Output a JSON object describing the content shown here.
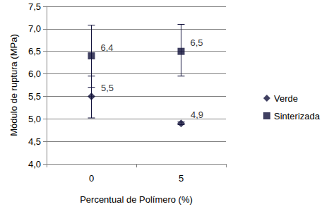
{
  "chart_data": {
    "type": "scatter",
    "x_label": "Percentual de Polímero (%)",
    "y_label": "Módulo de ruptura (MPa)",
    "categories": [
      "0",
      "5"
    ],
    "series": [
      {
        "name": "Verde",
        "color": "#10103a",
        "marker": "diamond",
        "values": [
          5.5,
          4.9
        ],
        "value_labels": [
          "5,5",
          "4,9"
        ],
        "error_bars": [
          [
            5.02,
            5.95
          ],
          [
            4.87,
            4.93
          ]
        ]
      },
      {
        "name": "Sinterizada",
        "color": "#10103a",
        "marker": "square",
        "values": [
          6.4,
          6.5
        ],
        "value_labels": [
          "6,4",
          "6,5"
        ],
        "error_bars": [
          [
            5.7,
            7.08
          ],
          [
            5.95,
            7.1
          ]
        ]
      }
    ],
    "ylim": [
      4,
      7.5
    ],
    "yticks": [
      {
        "value": 4,
        "label": "4,0"
      },
      {
        "value": 4.5,
        "label": "4,5"
      },
      {
        "value": 5,
        "label": "5,0"
      },
      {
        "value": 5.5,
        "label": "5,5"
      },
      {
        "value": 6,
        "label": "6,0"
      },
      {
        "value": 6.5,
        "label": "6,5"
      },
      {
        "value": 7,
        "label": "7,0"
      },
      {
        "value": 7.5,
        "label": "7,5"
      }
    ],
    "grid": true,
    "legend": "right",
    "data_labels": true
  }
}
